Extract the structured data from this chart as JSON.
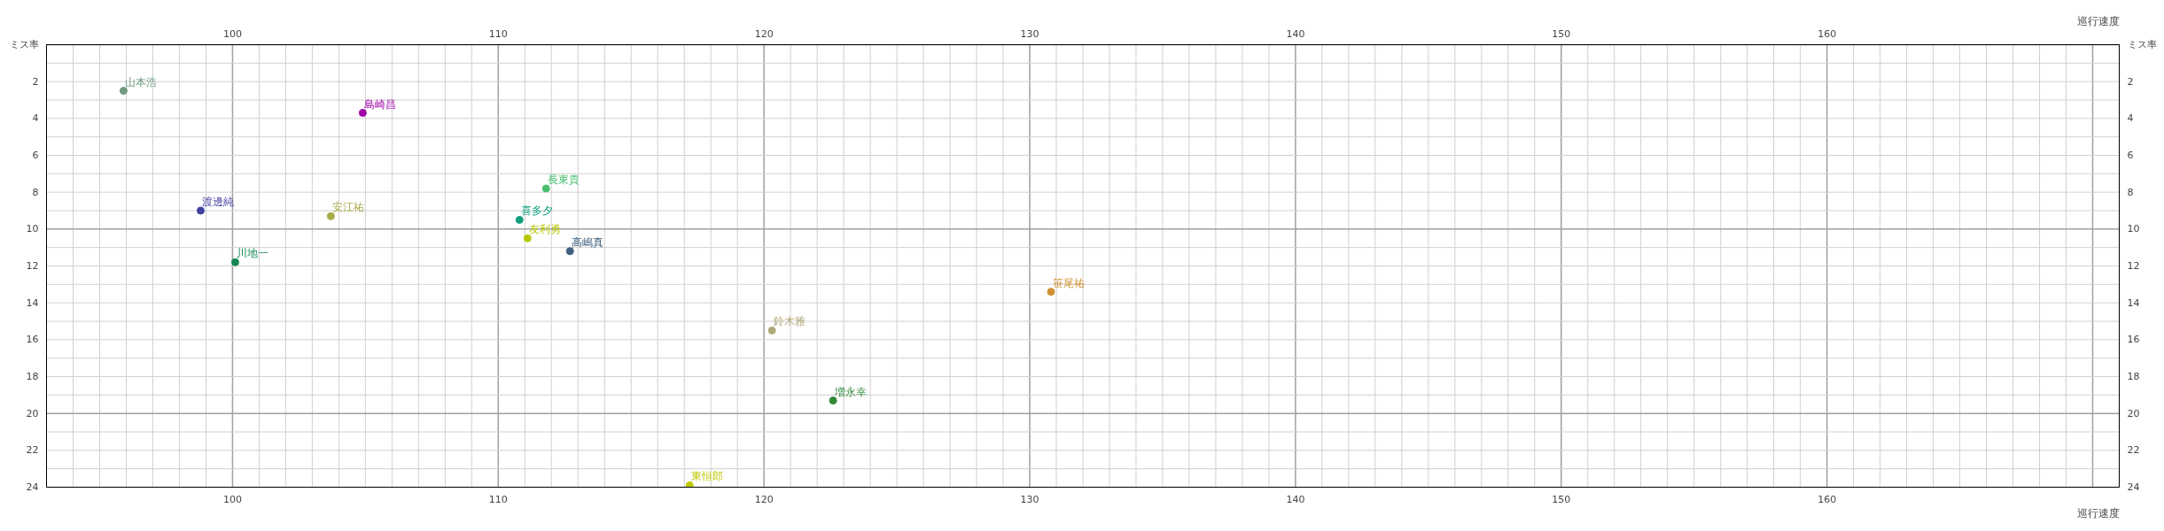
{
  "chart_data": {
    "type": "scatter",
    "xlabel": "巡行速度",
    "x2label": "巡行速度",
    "ylabel": "ミス率",
    "y2label": "ミス率",
    "xlim": [
      93,
      171
    ],
    "xticks": [
      100,
      110,
      120,
      130,
      140,
      150,
      160
    ],
    "x2lim": [
      93,
      171
    ],
    "x2ticks": [
      100,
      110,
      120,
      130,
      140,
      150,
      160
    ],
    "ylim": [
      24,
      0
    ],
    "yticks": [
      2,
      4,
      6,
      8,
      10,
      12,
      14,
      16,
      18,
      20,
      22,
      24
    ],
    "y2lim": [
      24,
      0
    ],
    "y2ticks": [
      2,
      4,
      6,
      8,
      10,
      12,
      14,
      16,
      18,
      20,
      22,
      24
    ],
    "grid": true,
    "marker": "circle",
    "series": [
      {
        "name": "山本浩",
        "color": "#6e9a80",
        "x": [
          95.9
        ],
        "values": [
          2.5
        ]
      },
      {
        "name": "島崎昌",
        "color": "#a000a8",
        "x": [
          104.9
        ],
        "values": [
          3.7
        ]
      },
      {
        "name": "渡邊純",
        "color": "#4040a0",
        "x": [
          98.8
        ],
        "values": [
          9.0
        ]
      },
      {
        "name": "安江祐",
        "color": "#a8a848",
        "x": [
          103.7
        ],
        "values": [
          9.3
        ]
      },
      {
        "name": "川地一",
        "color": "#108850",
        "x": [
          100.1
        ],
        "values": [
          11.8
        ]
      },
      {
        "name": "長東貴",
        "color": "#48c070",
        "x": [
          111.8
        ],
        "values": [
          7.8
        ]
      },
      {
        "name": "喜多夕",
        "color": "#10a080",
        "x": [
          110.8
        ],
        "values": [
          9.5
        ]
      },
      {
        "name": "友利勇",
        "color": "#b8c800",
        "x": [
          111.1
        ],
        "values": [
          10.5
        ]
      },
      {
        "name": "高嶋真",
        "color": "#406080",
        "x": [
          112.7
        ],
        "values": [
          11.2
        ]
      },
      {
        "name": "鈴木雅",
        "color": "#b0a878",
        "x": [
          120.3
        ],
        "values": [
          15.5
        ]
      },
      {
        "name": "増永幸",
        "color": "#308838",
        "x": [
          122.6
        ],
        "values": [
          19.3
        ]
      },
      {
        "name": "笹尾祐",
        "color": "#d09030",
        "x": [
          130.8
        ],
        "values": [
          13.4
        ]
      },
      {
        "name": "東恒郎",
        "color": "#c0c800",
        "x": [
          117.2
        ],
        "values": [
          23.9
        ]
      }
    ]
  }
}
